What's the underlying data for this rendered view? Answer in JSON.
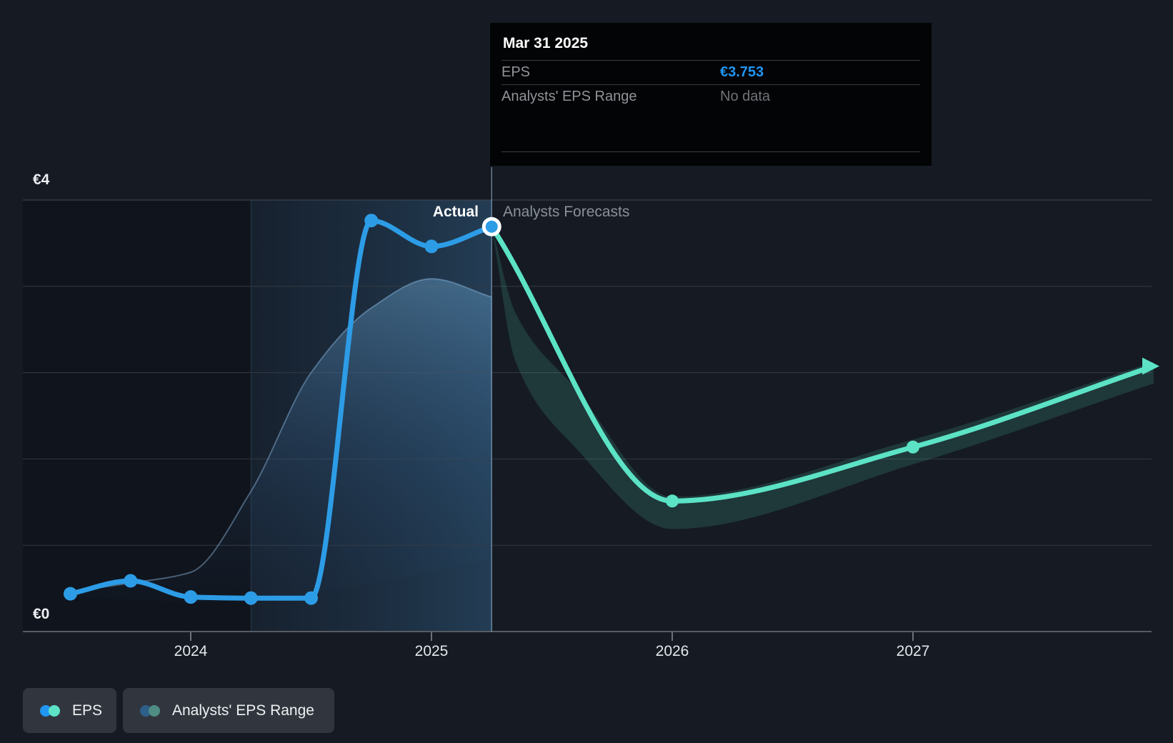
{
  "colors": {
    "background": "#151a23",
    "eps_blue": "#2D9CE6",
    "forecast_teal": "#5CE3C5",
    "tooltip_value_blue": "#2196F3",
    "no_data_gray": "#6f747a",
    "range_blue_dark": "#2d6089",
    "range_teal_dark": "#4f8d84",
    "gridline": "#343a43",
    "gridline_top": "#434953",
    "axis_line": "#575c64",
    "divider_line": "rgba(165,205,235,0.55)"
  },
  "tooltip": {
    "date": "Mar 31 2025",
    "rows": [
      {
        "label": "EPS",
        "value": "€3.753",
        "value_color": "#2196F3",
        "bold": true
      },
      {
        "label": "Analysts' EPS Range",
        "value": "No data",
        "value_color": "#6f747a",
        "bold": false
      }
    ]
  },
  "labels": {
    "actual": "Actual",
    "forecast": "Analysts Forecasts"
  },
  "axes": {
    "y_labels": {
      "top": "€4",
      "bottom": "€0"
    },
    "x_ticks": [
      "2024",
      "2025",
      "2026",
      "2027"
    ]
  },
  "legend": [
    {
      "label": "EPS",
      "dot1": "#2196F3",
      "dot2": "#5CE3C5"
    },
    {
      "label": "Analysts' EPS Range",
      "dot1": "#2d6089",
      "dot2": "#4f8d84"
    }
  ],
  "chart_data": {
    "type": "line",
    "currency": "EUR",
    "y_axis": {
      "min": 0,
      "max": 4,
      "labeled_ticks": [
        "€0",
        "€4"
      ],
      "grid": true
    },
    "x_axis": {
      "tick_years": [
        2024,
        2025,
        2026,
        2027
      ],
      "tick_labels": [
        "2024",
        "2025",
        "2026",
        "2027"
      ],
      "range": [
        2023.3,
        2028.0
      ]
    },
    "actual_forecast_divider_x": 2025.25,
    "highlight_band_x": [
      2024.25,
      2025.25
    ],
    "selected_point": {
      "x": 2025.25,
      "value": 3.753,
      "tooltip_date": "Mar 31 2025"
    },
    "series": [
      {
        "name": "EPS",
        "role": "actual",
        "color": "#2D9CE6",
        "x": [
          2023.5,
          2023.75,
          2024.0,
          2024.25,
          2024.5,
          2024.75,
          2025.0,
          2025.25
        ],
        "values": [
          0.35,
          0.47,
          0.32,
          0.31,
          0.31,
          3.81,
          3.57,
          3.753
        ]
      },
      {
        "name": "EPS forecast",
        "role": "forecast",
        "color": "#5CE3C5",
        "x": [
          2025.25,
          2026.0,
          2027.0,
          2028.0
        ],
        "values": [
          3.753,
          1.21,
          1.71,
          2.46
        ],
        "marker_x": [
          2026.0,
          2027.0
        ],
        "arrow_end": true
      },
      {
        "name": "Past analysts estimate band",
        "role": "band-past",
        "x": [
          2023.5,
          2023.75,
          2024.0,
          2024.25,
          2024.5,
          2024.75,
          2025.0,
          2025.25
        ],
        "low": [
          0.33,
          0.3,
          0.27,
          0.3,
          0.35,
          0.45,
          0.55,
          0.68
        ],
        "high": [
          0.37,
          0.45,
          0.55,
          1.3,
          2.4,
          3.0,
          3.27,
          3.1
        ]
      },
      {
        "name": "Analysts' EPS Range",
        "role": "band-forecast",
        "x": [
          2025.25,
          2025.35,
          2025.6,
          2026.0,
          2027.0,
          2028.0
        ],
        "low": [
          3.753,
          2.5,
          1.7,
          0.95,
          1.55,
          2.3
        ],
        "high": [
          3.753,
          2.95,
          2.25,
          1.25,
          1.78,
          2.5
        ]
      }
    ],
    "legend_position": "bottom-left",
    "annotations": [
      "Actual",
      "Analysts Forecasts"
    ]
  }
}
